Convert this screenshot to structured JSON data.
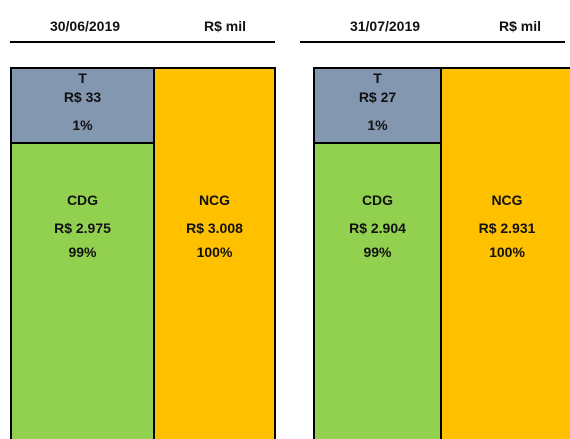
{
  "panels": [
    {
      "date": "30/06/2019",
      "unit": "R$ mil",
      "t": {
        "label": "T",
        "value": "R$ 33",
        "pct": "1%"
      },
      "cdg": {
        "label": "CDG",
        "value": "R$ 2.975",
        "pct": "99%"
      },
      "ncg": {
        "label": "NCG",
        "value": "R$ 3.008",
        "pct": "100%"
      }
    },
    {
      "date": "31/07/2019",
      "unit": "R$ mil",
      "t": {
        "label": "T",
        "value": "R$ 27",
        "pct": "1%"
      },
      "cdg": {
        "label": "CDG",
        "value": "R$ 2.904",
        "pct": "99%"
      },
      "ncg": {
        "label": "NCG",
        "value": "R$ 2.931",
        "pct": "100%"
      }
    }
  ]
}
